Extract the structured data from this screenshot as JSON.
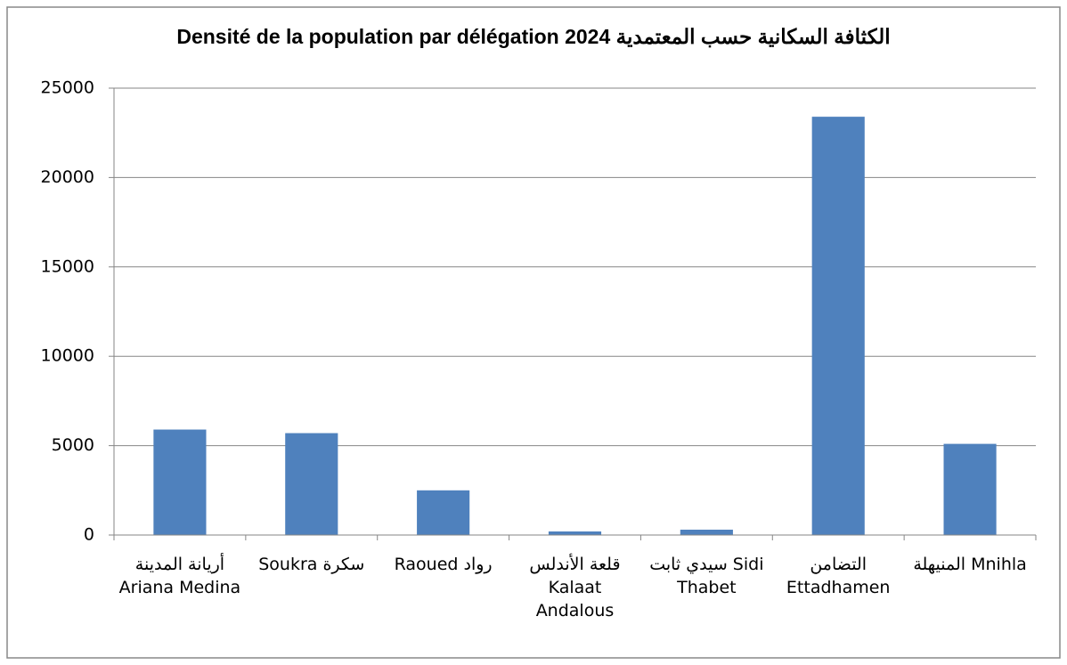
{
  "chart_data": {
    "type": "bar",
    "title": "Densité de la population par délégation 2024 الكثافة السكانية حسب المعتمدية",
    "categories": [
      "أريانة المدينة Ariana Medina",
      "Soukra سكرة",
      "Raoued رواد",
      "قلعة الأندلس Kalaat Andalous",
      "سيدي ثابت Sidi Thabet",
      "التضامن Ettadhamen",
      "المنيهلة Mnihla"
    ],
    "values": [
      5900,
      5700,
      2500,
      200,
      300,
      23400,
      5100
    ],
    "color": "#4f81bd",
    "ylim": [
      0,
      25000
    ],
    "yticks": [
      0,
      5000,
      10000,
      15000,
      20000,
      25000
    ],
    "grid": true
  }
}
